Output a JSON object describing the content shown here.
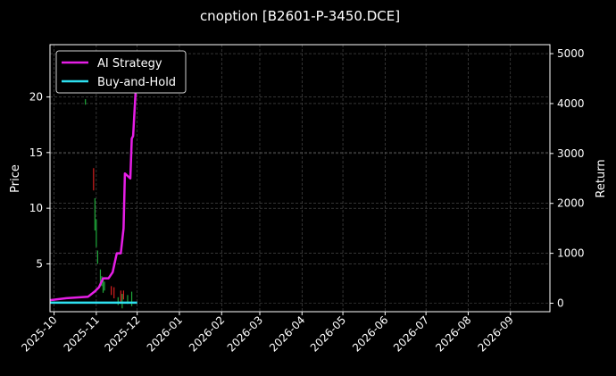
{
  "chart_data": {
    "type": "line",
    "title": "cnoption [B2601-P-3450.DCE]",
    "ylabel_left": "Price",
    "ylabel_right": "Return",
    "x_ticks": [
      "2025-10",
      "2025-11",
      "2025-12",
      "2026-01",
      "2026-02",
      "2026-03",
      "2026-04",
      "2026-05",
      "2026-06",
      "2026-07",
      "2026-08",
      "2026-09"
    ],
    "y_left_ticks": [
      5,
      10,
      15,
      20
    ],
    "y_right_ticks": [
      0,
      1000,
      2000,
      3000,
      4000,
      5000
    ],
    "ylim_left": [
      0.7,
      24.7
    ],
    "ylim_right": [
      -170,
      5180
    ],
    "xlim": [
      "2025-09-28",
      "2026-09-30"
    ],
    "grid": true,
    "legend_position": "top-left",
    "colors": {
      "ai_strategy": "#e61ee6",
      "buy_and_hold": "#2ee0f0",
      "candle_up": "#1fa83a",
      "candle_down": "#d62020",
      "grid": "#555555"
    },
    "candles": [
      {
        "x": "2025-10-24",
        "low": 19.3,
        "high": 19.8,
        "dir": "up"
      },
      {
        "x": "2025-10-30",
        "low": 11.6,
        "high": 13.6,
        "dir": "down"
      },
      {
        "x": "2025-10-31",
        "low": 8.0,
        "high": 10.9,
        "dir": "up"
      },
      {
        "x": "2025-11-01",
        "low": 6.5,
        "high": 9.0,
        "dir": "up"
      },
      {
        "x": "2025-11-02",
        "low": 5.0,
        "high": 6.2,
        "dir": "up"
      },
      {
        "x": "2025-11-04",
        "low": 3.2,
        "high": 4.5,
        "dir": "up"
      },
      {
        "x": "2025-11-05",
        "low": 3.0,
        "high": 3.9,
        "dir": "up"
      },
      {
        "x": "2025-11-06",
        "low": 2.4,
        "high": 3.6,
        "dir": "up"
      },
      {
        "x": "2025-11-07",
        "low": 2.6,
        "high": 3.4,
        "dir": "up"
      },
      {
        "x": "2025-11-12",
        "low": 2.2,
        "high": 3.0,
        "dir": "down"
      },
      {
        "x": "2025-11-14",
        "low": 1.9,
        "high": 2.9,
        "dir": "down"
      },
      {
        "x": "2025-11-17",
        "low": 1.3,
        "high": 2.0,
        "dir": "up"
      },
      {
        "x": "2025-11-19",
        "low": 1.6,
        "high": 2.6,
        "dir": "down"
      },
      {
        "x": "2025-11-20",
        "low": 1.0,
        "high": 2.3,
        "dir": "up"
      },
      {
        "x": "2025-11-21",
        "low": 1.8,
        "high": 2.6,
        "dir": "down"
      },
      {
        "x": "2025-11-24",
        "low": 1.4,
        "high": 2.2,
        "dir": "up"
      },
      {
        "x": "2025-11-27",
        "low": 1.2,
        "high": 2.5,
        "dir": "up"
      }
    ],
    "series": [
      {
        "name": "AI Strategy",
        "axis": "right",
        "points": [
          {
            "x": "2025-09-28",
            "y": 60
          },
          {
            "x": "2025-10-10",
            "y": 100
          },
          {
            "x": "2025-10-26",
            "y": 130
          },
          {
            "x": "2025-10-31",
            "y": 240
          },
          {
            "x": "2025-11-03",
            "y": 320
          },
          {
            "x": "2025-11-06",
            "y": 500
          },
          {
            "x": "2025-11-10",
            "y": 500
          },
          {
            "x": "2025-11-13",
            "y": 620
          },
          {
            "x": "2025-11-16",
            "y": 1000
          },
          {
            "x": "2025-11-19",
            "y": 1000
          },
          {
            "x": "2025-11-21",
            "y": 1500
          },
          {
            "x": "2025-11-22",
            "y": 2600
          },
          {
            "x": "2025-11-24",
            "y": 2550
          },
          {
            "x": "2025-11-26",
            "y": 2500
          },
          {
            "x": "2025-11-27",
            "y": 3300
          },
          {
            "x": "2025-11-28",
            "y": 3350
          },
          {
            "x": "2025-11-30",
            "y": 4300
          }
        ]
      },
      {
        "name": "Buy-and-Hold",
        "axis": "right",
        "points": [
          {
            "x": "2025-09-28",
            "y": 10
          },
          {
            "x": "2025-12-01",
            "y": 10
          }
        ]
      }
    ]
  }
}
